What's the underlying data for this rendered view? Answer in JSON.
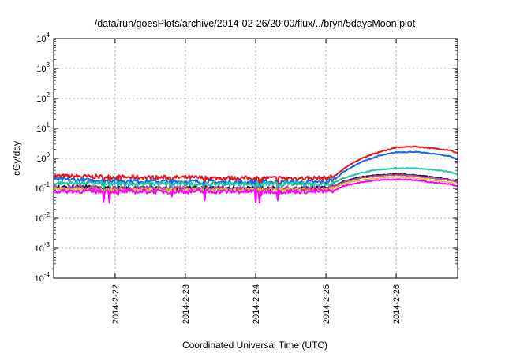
{
  "chart_data": {
    "type": "line",
    "title": "/data/run/goesPlots/archive/2014-02-26/20:00/flux/../bryn/5daysMoon.plot",
    "xlabel": "Coordinated Universal Time (UTC)",
    "ylabel": "cGy/day",
    "x_range": [
      "2014-02-21T03:00",
      "2014-02-26T21:00"
    ],
    "yscale": "log",
    "ylim": [
      0.0001,
      10000
    ],
    "grid": true,
    "legend": "none",
    "x_ticks": [
      "2014-2-22",
      "2014-2-23",
      "2014-2-24",
      "2014-2-25",
      "2014-2-26"
    ],
    "y_ticks": [
      {
        "base": "10",
        "exp": "-4"
      },
      {
        "base": "10",
        "exp": "-3"
      },
      {
        "base": "10",
        "exp": "-2"
      },
      {
        "base": "10",
        "exp": "-1"
      },
      {
        "base": "10",
        "exp": "0"
      },
      {
        "base": "10",
        "exp": "1"
      },
      {
        "base": "10",
        "exp": "2"
      },
      {
        "base": "10",
        "exp": "3"
      },
      {
        "base": "10",
        "exp": "4"
      }
    ],
    "x": [
      "2014-02-21T03:00",
      "2014-02-21T12:00",
      "2014-02-22T00:00",
      "2014-02-22T12:00",
      "2014-02-23T00:00",
      "2014-02-23T12:00",
      "2014-02-24T00:00",
      "2014-02-24T12:00",
      "2014-02-24T18:00",
      "2014-02-25T00:00",
      "2014-02-25T03:00",
      "2014-02-25T06:00",
      "2014-02-25T12:00",
      "2014-02-25T18:00",
      "2014-02-26T00:00",
      "2014-02-26T06:00",
      "2014-02-26T12:00",
      "2014-02-26T18:00",
      "2014-02-26T21:00"
    ],
    "series": [
      {
        "color": "#e8141b",
        "width": 2,
        "values": [
          0.26,
          0.25,
          0.24,
          0.23,
          0.23,
          0.22,
          0.22,
          0.22,
          0.22,
          0.22,
          0.26,
          0.45,
          1.0,
          1.6,
          2.3,
          2.5,
          2.2,
          1.9,
          1.5
        ]
      },
      {
        "color": "#1a66e8",
        "width": 2,
        "values": [
          0.2,
          0.19,
          0.18,
          0.17,
          0.17,
          0.16,
          0.16,
          0.16,
          0.16,
          0.16,
          0.2,
          0.36,
          0.75,
          1.2,
          1.6,
          1.65,
          1.45,
          1.2,
          0.95
        ]
      },
      {
        "color": "#1fc7a2",
        "width": 2,
        "values": [
          0.15,
          0.15,
          0.14,
          0.14,
          0.14,
          0.14,
          0.14,
          0.14,
          0.14,
          0.14,
          0.16,
          0.22,
          0.33,
          0.42,
          0.47,
          0.47,
          0.42,
          0.36,
          0.3
        ]
      },
      {
        "color": "#1a1a3a",
        "width": 2,
        "values": [
          0.11,
          0.11,
          0.1,
          0.1,
          0.1,
          0.1,
          0.1,
          0.1,
          0.1,
          0.1,
          0.12,
          0.17,
          0.24,
          0.28,
          0.3,
          0.28,
          0.24,
          0.2,
          0.17
        ]
      },
      {
        "color": "#c04fa0",
        "width": 2,
        "values": [
          0.105,
          0.105,
          0.1,
          0.1,
          0.1,
          0.1,
          0.1,
          0.1,
          0.1,
          0.1,
          0.115,
          0.16,
          0.22,
          0.26,
          0.28,
          0.26,
          0.22,
          0.19,
          0.16
        ]
      },
      {
        "color": "#e8c020",
        "width": 1.5,
        "values": [
          0.09,
          0.09,
          0.088,
          0.088,
          0.088,
          0.088,
          0.088,
          0.088,
          0.088,
          0.088,
          0.1,
          0.14,
          0.19,
          0.22,
          0.24,
          0.22,
          0.19,
          0.16,
          0.14
        ]
      },
      {
        "color": "#ff00ff",
        "width": 2,
        "values": [
          0.08,
          0.08,
          0.078,
          0.078,
          0.078,
          0.078,
          0.078,
          0.078,
          0.078,
          0.078,
          0.085,
          0.12,
          0.16,
          0.19,
          0.2,
          0.19,
          0.16,
          0.14,
          0.12
        ]
      }
    ]
  }
}
